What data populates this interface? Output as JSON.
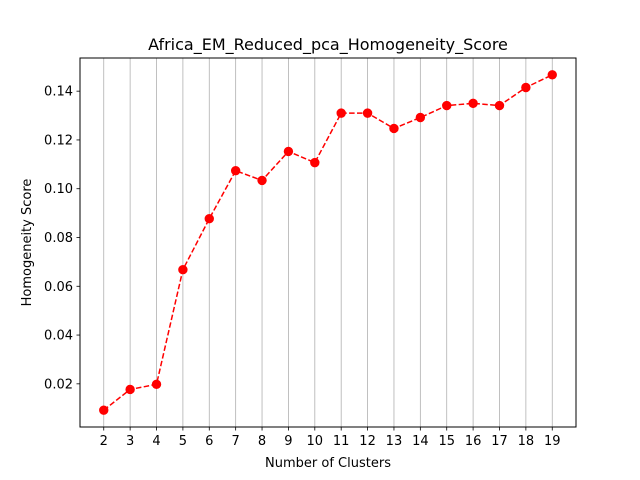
{
  "chart_data": {
    "type": "line",
    "title": "Africa_EM_Reduced_pca_Homogeneity_Score",
    "xlabel": "Number of Clusters",
    "ylabel": "Homogeneity Score",
    "x": [
      2,
      3,
      4,
      5,
      6,
      7,
      8,
      9,
      10,
      11,
      12,
      13,
      14,
      15,
      16,
      17,
      18,
      19
    ],
    "series": [
      {
        "name": "",
        "values": [
          0.0092,
          0.0177,
          0.0198,
          0.0668,
          0.0877,
          0.1074,
          0.1034,
          0.1153,
          0.1107,
          0.131,
          0.131,
          0.1247,
          0.1292,
          0.1341,
          0.135,
          0.1341,
          0.1415,
          0.1467
        ],
        "color": "#ff0000",
        "linestyle": "dashed",
        "marker": "circle"
      }
    ],
    "xticks": [
      "2",
      "3",
      "4",
      "5",
      "6",
      "7",
      "8",
      "9",
      "10",
      "11",
      "12",
      "13",
      "14",
      "15",
      "16",
      "17",
      "18",
      "19"
    ],
    "yticks": [
      "0.02",
      "0.04",
      "0.06",
      "0.08",
      "0.10",
      "0.12",
      "0.14"
    ],
    "ytick_values": [
      0.02,
      0.04,
      0.06,
      0.08,
      0.1,
      0.12,
      0.14
    ],
    "xlim": [
      1.1,
      19.9
    ],
    "ylim": [
      0.0023,
      0.1536
    ],
    "grid": "vertical",
    "grid_color": "#b0b0b0",
    "legend": "none"
  }
}
